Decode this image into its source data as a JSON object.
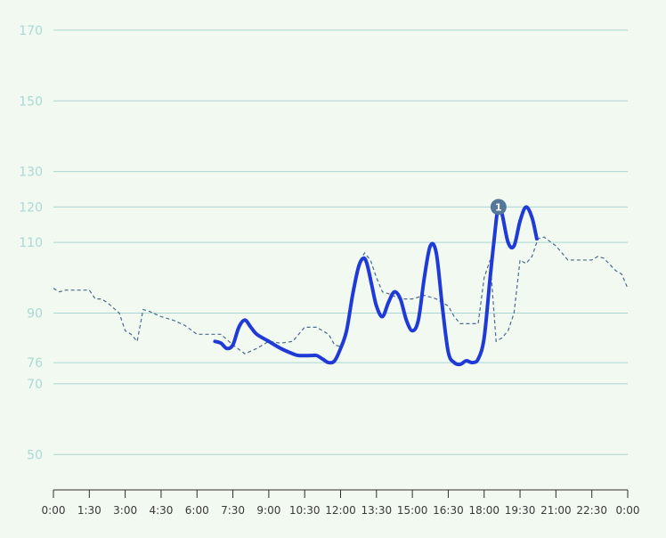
{
  "chart_data": {
    "type": "line",
    "title": "",
    "xlabel": "",
    "ylabel": "",
    "x_unit": "hours",
    "xlim": [
      0,
      24
    ],
    "ylim": [
      40,
      175
    ],
    "y_ticks": [
      50,
      70,
      76,
      90,
      110,
      120,
      130,
      150,
      170
    ],
    "x_ticks": [
      {
        "value": 0,
        "label": "0:00"
      },
      {
        "value": 1.5,
        "label": "1:30"
      },
      {
        "value": 3,
        "label": "3:00"
      },
      {
        "value": 4.5,
        "label": "4:30"
      },
      {
        "value": 6,
        "label": "6:00"
      },
      {
        "value": 7.5,
        "label": "7:30"
      },
      {
        "value": 9,
        "label": "9:00"
      },
      {
        "value": 10.5,
        "label": "10:30"
      },
      {
        "value": 12,
        "label": "12:00"
      },
      {
        "value": 13.5,
        "label": "13:30"
      },
      {
        "value": 15,
        "label": "15:00"
      },
      {
        "value": 16.5,
        "label": "16:30"
      },
      {
        "value": 18,
        "label": "18:00"
      },
      {
        "value": 19.5,
        "label": "19:30"
      },
      {
        "value": 21,
        "label": "21:00"
      },
      {
        "value": 22.5,
        "label": "22:30"
      },
      {
        "value": 24,
        "label": "0:00"
      }
    ],
    "grid": true,
    "series": [
      {
        "style": "solid",
        "color": "#1f3ad6",
        "points": [
          [
            6.75,
            82.0
          ],
          [
            7.0,
            81.5
          ],
          [
            7.25,
            80.0
          ],
          [
            7.5,
            81.0
          ],
          [
            7.75,
            86.0
          ],
          [
            8.0,
            88.0
          ],
          [
            8.25,
            86.0
          ],
          [
            8.5,
            84.0
          ],
          [
            9.0,
            82.0
          ],
          [
            9.5,
            80.0
          ],
          [
            10.0,
            78.5
          ],
          [
            10.25,
            78.0
          ],
          [
            10.75,
            78.0
          ],
          [
            11.0,
            78.0
          ],
          [
            11.25,
            77.0
          ],
          [
            11.5,
            76.0
          ],
          [
            11.75,
            76.5
          ],
          [
            12.0,
            80.0
          ],
          [
            12.25,
            85.0
          ],
          [
            12.5,
            95.0
          ],
          [
            12.75,
            103.0
          ],
          [
            12.95,
            105.5
          ],
          [
            13.1,
            104.0
          ],
          [
            13.3,
            98.0
          ],
          [
            13.5,
            92.0
          ],
          [
            13.75,
            89.0
          ],
          [
            14.0,
            93.0
          ],
          [
            14.25,
            96.0
          ],
          [
            14.5,
            94.0
          ],
          [
            14.75,
            88.0
          ],
          [
            15.0,
            85.0
          ],
          [
            15.25,
            88.0
          ],
          [
            15.5,
            100.0
          ],
          [
            15.75,
            109.0
          ],
          [
            16.0,
            107.0
          ],
          [
            16.25,
            92.0
          ],
          [
            16.5,
            79.0
          ],
          [
            16.75,
            76.0
          ],
          [
            17.0,
            75.5
          ],
          [
            17.25,
            76.5
          ],
          [
            17.5,
            76.0
          ],
          [
            17.75,
            77.0
          ],
          [
            18.0,
            83.0
          ],
          [
            18.25,
            100.0
          ],
          [
            18.5,
            116.0
          ],
          [
            18.6,
            120.0
          ],
          [
            18.75,
            118.0
          ],
          [
            19.0,
            110.0
          ],
          [
            19.25,
            109.0
          ],
          [
            19.5,
            116.0
          ],
          [
            19.75,
            120.0
          ],
          [
            20.0,
            117.0
          ],
          [
            20.2,
            111.0
          ]
        ]
      },
      {
        "style": "dashed",
        "color": "#4a6a8e",
        "points": [
          [
            0.0,
            97.0
          ],
          [
            0.25,
            96.0
          ],
          [
            0.5,
            96.5
          ],
          [
            1.0,
            96.5
          ],
          [
            1.5,
            96.5
          ],
          [
            1.75,
            94.0
          ],
          [
            2.0,
            94.0
          ],
          [
            2.25,
            93.0
          ],
          [
            2.75,
            90.0
          ],
          [
            3.0,
            85.0
          ],
          [
            3.25,
            84.0
          ],
          [
            3.5,
            82.0
          ],
          [
            3.75,
            91.0
          ],
          [
            4.0,
            90.5
          ],
          [
            4.5,
            89.0
          ],
          [
            5.0,
            88.0
          ],
          [
            5.5,
            86.5
          ],
          [
            6.0,
            84.0
          ],
          [
            6.5,
            84.0
          ],
          [
            7.0,
            84.0
          ],
          [
            7.5,
            81.0
          ],
          [
            8.0,
            78.5
          ],
          [
            8.5,
            80.0
          ],
          [
            9.0,
            82.0
          ],
          [
            9.5,
            81.5
          ],
          [
            10.0,
            82.0
          ],
          [
            10.5,
            86.0
          ],
          [
            11.0,
            86.0
          ],
          [
            11.5,
            84.0
          ],
          [
            11.75,
            81.0
          ],
          [
            12.0,
            80.5
          ],
          [
            12.25,
            84.0
          ],
          [
            12.5,
            95.0
          ],
          [
            12.75,
            104.0
          ],
          [
            13.0,
            107.0
          ],
          [
            13.25,
            105.0
          ],
          [
            13.5,
            100.0
          ],
          [
            13.75,
            96.0
          ],
          [
            14.0,
            95.5
          ],
          [
            14.5,
            94.0
          ],
          [
            15.0,
            94.0
          ],
          [
            15.5,
            95.0
          ],
          [
            16.0,
            94.0
          ],
          [
            16.5,
            92.0
          ],
          [
            16.75,
            89.0
          ],
          [
            17.0,
            87.0
          ],
          [
            17.5,
            87.0
          ],
          [
            17.75,
            87.0
          ],
          [
            18.0,
            100.0
          ],
          [
            18.25,
            105.0
          ],
          [
            18.5,
            82.0
          ],
          [
            18.75,
            83.0
          ],
          [
            19.0,
            85.0
          ],
          [
            19.25,
            90.0
          ],
          [
            19.5,
            105.0
          ],
          [
            19.75,
            104.0
          ],
          [
            20.0,
            106.0
          ],
          [
            20.25,
            111.0
          ],
          [
            20.5,
            111.5
          ],
          [
            21.0,
            109.0
          ],
          [
            21.5,
            105.0
          ],
          [
            22.0,
            105.0
          ],
          [
            22.5,
            105.0
          ],
          [
            22.75,
            106.0
          ],
          [
            23.0,
            105.5
          ],
          [
            23.5,
            102.0
          ],
          [
            23.75,
            101.0
          ],
          [
            24.0,
            97.0
          ]
        ]
      }
    ],
    "annotations": [
      {
        "x": 18.6,
        "y": 120,
        "label": "1"
      }
    ]
  }
}
